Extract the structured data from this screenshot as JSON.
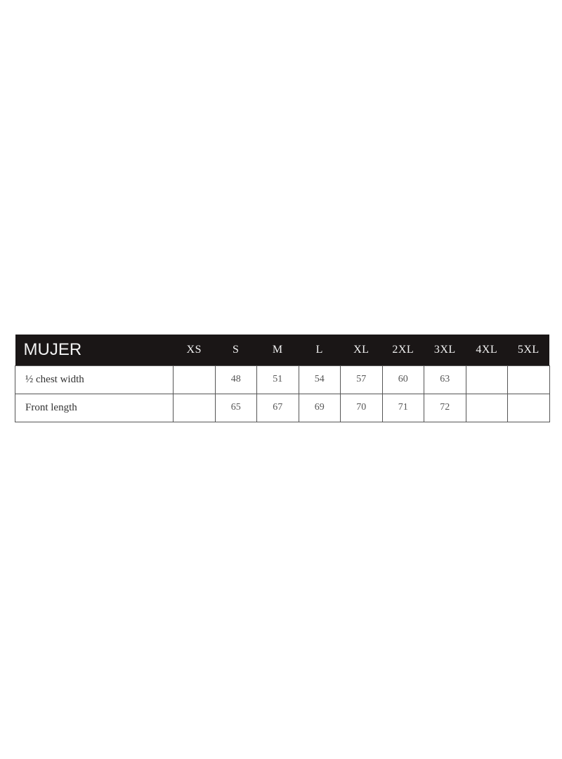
{
  "table": {
    "title": "MUJER",
    "sizes": [
      "XS",
      "S",
      "M",
      "L",
      "XL",
      "2XL",
      "3XL",
      "4XL",
      "5XL"
    ],
    "rows": [
      {
        "label": "½ chest width",
        "values": [
          "",
          "48",
          "51",
          "54",
          "57",
          "60",
          "63",
          "",
          ""
        ]
      },
      {
        "label": "Front length",
        "values": [
          "",
          "65",
          "67",
          "69",
          "70",
          "71",
          "72",
          "",
          ""
        ]
      }
    ]
  },
  "colors": {
    "header_bg": "#1a1616",
    "header_text": "#f2f2f2",
    "border": "#555555"
  }
}
